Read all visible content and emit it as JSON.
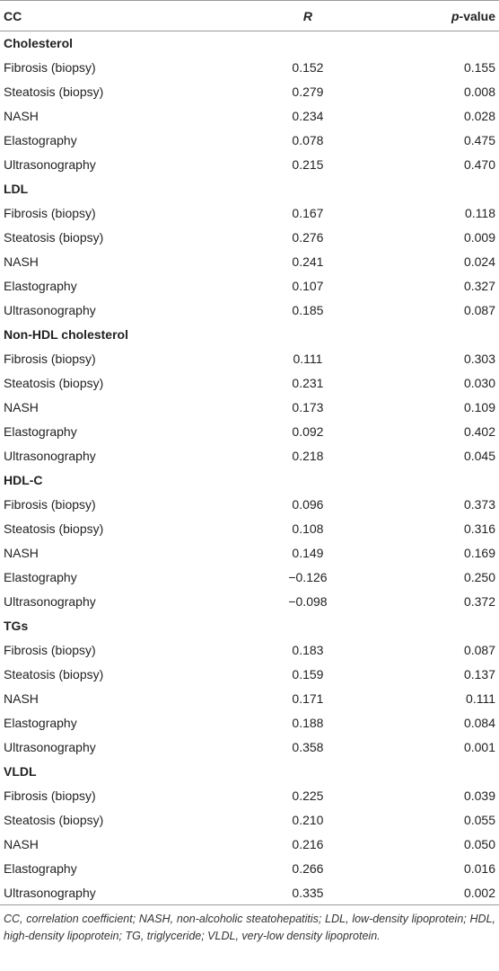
{
  "table": {
    "header": [
      "CC",
      "R",
      "p-value"
    ],
    "groups": [
      {
        "title": "Cholesterol",
        "rows": [
          [
            "Fibrosis (biopsy)",
            "0.152",
            "0.155"
          ],
          [
            "Steatosis (biopsy)",
            "0.279",
            "0.008"
          ],
          [
            "NASH",
            "0.234",
            "0.028"
          ],
          [
            "Elastography",
            "0.078",
            "0.475"
          ],
          [
            "Ultrasonography",
            "0.215",
            "0.470"
          ]
        ]
      },
      {
        "title": "LDL",
        "rows": [
          [
            "Fibrosis (biopsy)",
            "0.167",
            "0.118"
          ],
          [
            "Steatosis (biopsy)",
            "0.276",
            "0.009"
          ],
          [
            "NASH",
            "0.241",
            "0.024"
          ],
          [
            "Elastography",
            "0.107",
            "0.327"
          ],
          [
            "Ultrasonography",
            "0.185",
            "0.087"
          ]
        ]
      },
      {
        "title": "Non-HDL cholesterol",
        "rows": [
          [
            "Fibrosis (biopsy)",
            "0.111",
            "0.303"
          ],
          [
            "Steatosis (biopsy)",
            "0.231",
            "0.030"
          ],
          [
            "NASH",
            "0.173",
            "0.109"
          ],
          [
            "Elastography",
            "0.092",
            "0.402"
          ],
          [
            "Ultrasonography",
            "0.218",
            "0.045"
          ]
        ]
      },
      {
        "title": "HDL-C",
        "rows": [
          [
            "Fibrosis (biopsy)",
            "0.096",
            "0.373"
          ],
          [
            "Steatosis (biopsy)",
            "0.108",
            "0.316"
          ],
          [
            "NASH",
            "0.149",
            "0.169"
          ],
          [
            "Elastography",
            "−0.126",
            "0.250"
          ],
          [
            "Ultrasonography",
            "−0.098",
            "0.372"
          ]
        ]
      },
      {
        "title": "TGs",
        "rows": [
          [
            "Fibrosis (biopsy)",
            "0.183",
            "0.087"
          ],
          [
            "Steatosis (biopsy)",
            "0.159",
            "0.137"
          ],
          [
            "NASH",
            "0.171",
            "0.111"
          ],
          [
            "Elastography",
            "0.188",
            "0.084"
          ],
          [
            "Ultrasonography",
            "0.358",
            "0.001"
          ]
        ]
      },
      {
        "title": "VLDL",
        "rows": [
          [
            "Fibrosis (biopsy)",
            "0.225",
            "0.039"
          ],
          [
            "Steatosis (biopsy)",
            "0.210",
            "0.055"
          ],
          [
            "NASH",
            "0.216",
            "0.050"
          ],
          [
            "Elastography",
            "0.266",
            "0.016"
          ],
          [
            "Ultrasonography",
            "0.335",
            "0.002"
          ]
        ]
      }
    ]
  },
  "footnote": "CC, correlation coefficient; NASH, non-alcoholic steatohepatitis; LDL, low-density lipoprotein; HDL, high-density lipoprotein; TG, triglyceride; VLDL, very-low density lipoprotein."
}
